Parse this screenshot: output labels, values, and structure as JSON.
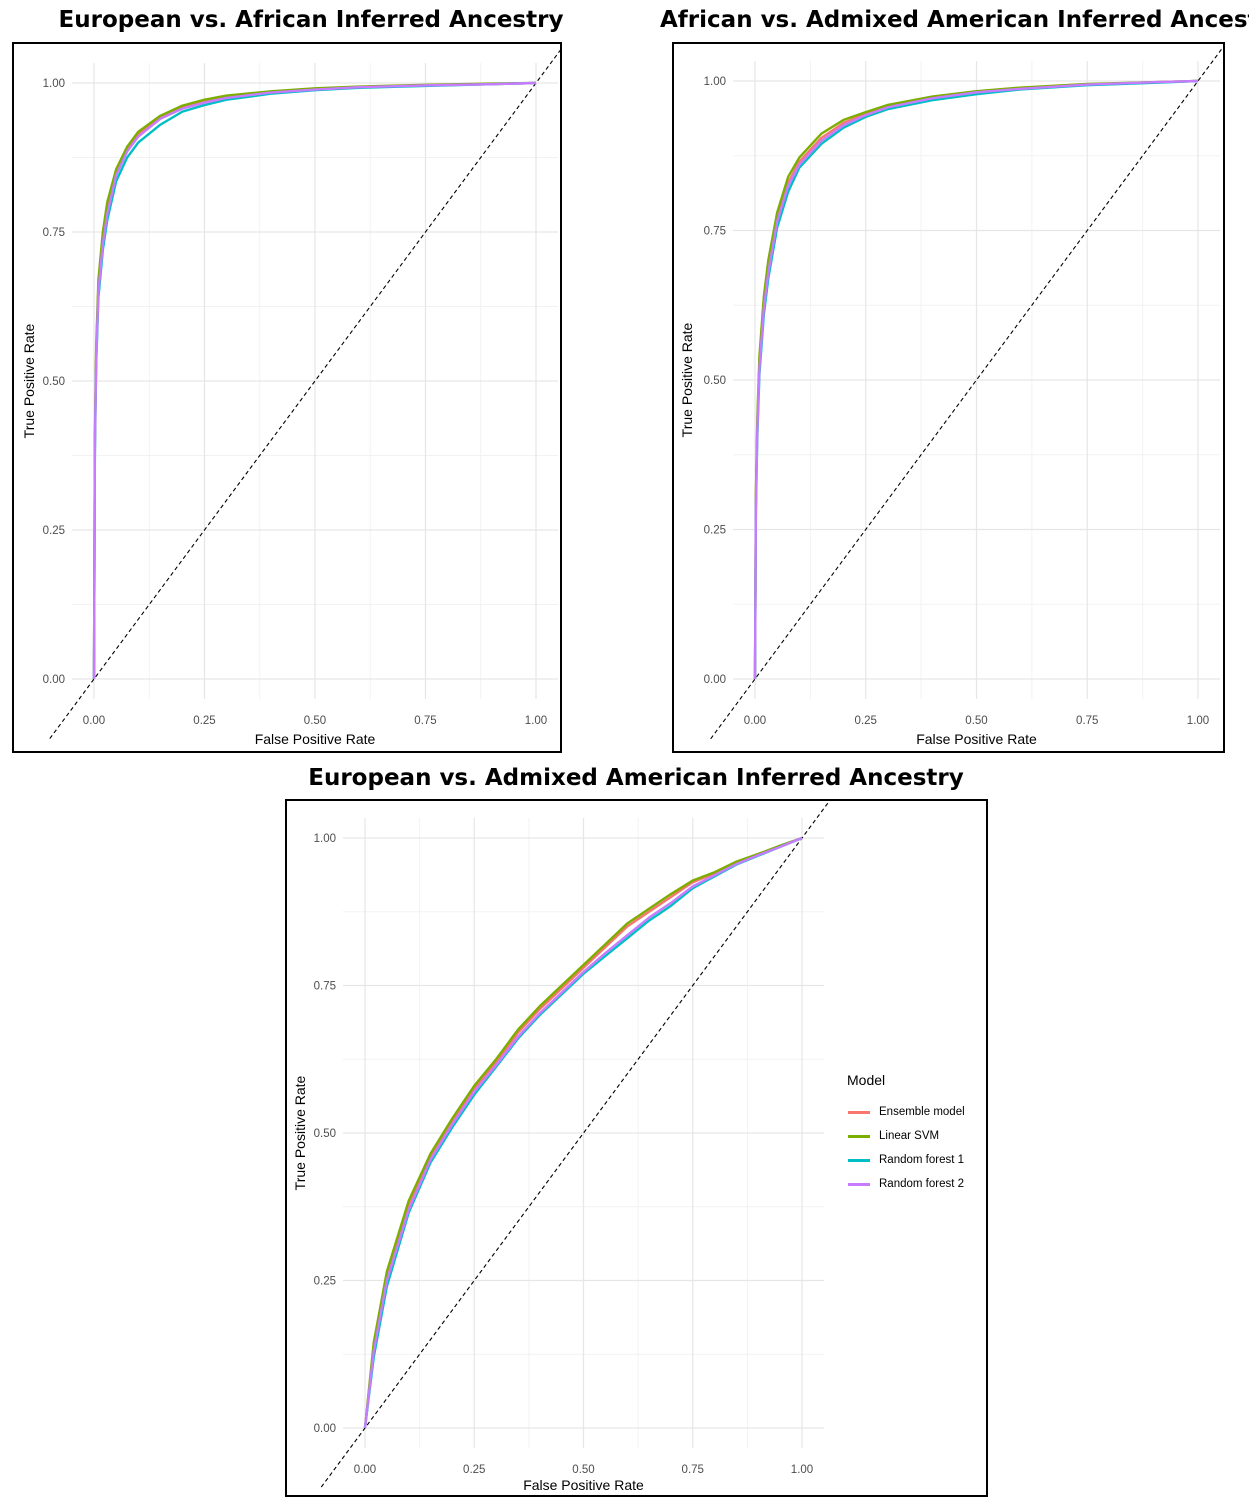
{
  "panels": [
    {
      "title": "European vs. African Inferred Ancestry"
    },
    {
      "title": "African vs. Admixed American Inferred Ancestry"
    },
    {
      "title": "European vs. Admixed American Inferred Ancestry"
    }
  ],
  "legend": {
    "title": "Model",
    "items": [
      {
        "label": "Ensemble model",
        "color": "#F8766D"
      },
      {
        "label": "Linear SVM",
        "color": "#7CAE00"
      },
      {
        "label": "Random forest 1",
        "color": "#00BFC4"
      },
      {
        "label": "Random forest 2",
        "color": "#C77CFF"
      }
    ]
  },
  "chart_data": [
    {
      "type": "line",
      "title": "European vs. African Inferred Ancestry",
      "xlabel": "False Positive Rate",
      "ylabel": "True Positive Rate",
      "xlim": [
        0,
        1
      ],
      "ylim": [
        0,
        1
      ],
      "xticks": [
        "0.00",
        "0.25",
        "0.50",
        "0.75",
        "1.00"
      ],
      "yticks": [
        "0.00",
        "0.25",
        "0.50",
        "0.75",
        "1.00"
      ],
      "grid": true,
      "reference_line": {
        "x": [
          0,
          1
        ],
        "y": [
          0,
          1
        ],
        "style": "dashed"
      },
      "series": [
        {
          "name": "Ensemble model",
          "x": [
            0,
            0.002,
            0.005,
            0.01,
            0.02,
            0.03,
            0.05,
            0.075,
            0.1,
            0.15,
            0.2,
            0.25,
            0.3,
            0.4,
            0.5,
            0.6,
            0.75,
            0.9,
            1.0
          ],
          "y": [
            0,
            0.4,
            0.55,
            0.66,
            0.74,
            0.79,
            0.85,
            0.89,
            0.915,
            0.942,
            0.96,
            0.97,
            0.977,
            0.985,
            0.99,
            0.993,
            0.996,
            0.998,
            1.0
          ]
        },
        {
          "name": "Linear SVM",
          "x": [
            0,
            0.002,
            0.005,
            0.01,
            0.02,
            0.03,
            0.05,
            0.075,
            0.1,
            0.15,
            0.2,
            0.25,
            0.3,
            0.4,
            0.5,
            0.6,
            0.75,
            0.9,
            1.0
          ],
          "y": [
            0,
            0.41,
            0.56,
            0.67,
            0.75,
            0.8,
            0.855,
            0.893,
            0.918,
            0.945,
            0.962,
            0.972,
            0.979,
            0.986,
            0.991,
            0.994,
            0.997,
            0.999,
            1.0
          ]
        },
        {
          "name": "Random forest 1",
          "x": [
            0,
            0.002,
            0.005,
            0.01,
            0.02,
            0.03,
            0.05,
            0.075,
            0.1,
            0.15,
            0.2,
            0.25,
            0.3,
            0.4,
            0.5,
            0.6,
            0.75,
            0.9,
            1.0
          ],
          "y": [
            0,
            0.38,
            0.53,
            0.64,
            0.72,
            0.77,
            0.835,
            0.875,
            0.9,
            0.93,
            0.952,
            0.963,
            0.972,
            0.982,
            0.988,
            0.992,
            0.995,
            0.998,
            1.0
          ]
        },
        {
          "name": "Random forest 2",
          "x": [
            0,
            0.002,
            0.005,
            0.01,
            0.02,
            0.03,
            0.05,
            0.075,
            0.1,
            0.15,
            0.2,
            0.25,
            0.3,
            0.4,
            0.5,
            0.6,
            0.75,
            0.9,
            1.0
          ],
          "y": [
            0,
            0.39,
            0.54,
            0.65,
            0.73,
            0.78,
            0.845,
            0.885,
            0.91,
            0.94,
            0.957,
            0.967,
            0.975,
            0.984,
            0.989,
            0.993,
            0.996,
            0.998,
            1.0
          ]
        }
      ]
    },
    {
      "type": "line",
      "title": "African vs. Admixed American Inferred Ancestry",
      "xlabel": "False Positive Rate",
      "ylabel": "True Positive Rate",
      "xlim": [
        0,
        1
      ],
      "ylim": [
        0,
        1
      ],
      "xticks": [
        "0.00",
        "0.25",
        "0.50",
        "0.75",
        "1.00"
      ],
      "yticks": [
        "0.00",
        "0.25",
        "0.50",
        "0.75",
        "1.00"
      ],
      "grid": true,
      "reference_line": {
        "x": [
          0,
          1
        ],
        "y": [
          0,
          1
        ],
        "style": "dashed"
      },
      "series": [
        {
          "name": "Ensemble model",
          "x": [
            0,
            0.002,
            0.005,
            0.01,
            0.02,
            0.03,
            0.05,
            0.075,
            0.1,
            0.15,
            0.2,
            0.25,
            0.3,
            0.4,
            0.5,
            0.6,
            0.75,
            0.9,
            1.0
          ],
          "y": [
            0,
            0.3,
            0.42,
            0.53,
            0.63,
            0.69,
            0.77,
            0.83,
            0.865,
            0.905,
            0.93,
            0.945,
            0.958,
            0.973,
            0.982,
            0.988,
            0.994,
            0.998,
            1.0
          ]
        },
        {
          "name": "Linear SVM",
          "x": [
            0,
            0.002,
            0.005,
            0.01,
            0.02,
            0.03,
            0.05,
            0.075,
            0.1,
            0.15,
            0.2,
            0.25,
            0.3,
            0.4,
            0.5,
            0.6,
            0.75,
            0.9,
            1.0
          ],
          "y": [
            0,
            0.31,
            0.43,
            0.54,
            0.64,
            0.7,
            0.78,
            0.84,
            0.872,
            0.912,
            0.935,
            0.948,
            0.96,
            0.974,
            0.983,
            0.989,
            0.995,
            0.998,
            1.0
          ]
        },
        {
          "name": "Random forest 1",
          "x": [
            0,
            0.002,
            0.005,
            0.01,
            0.02,
            0.03,
            0.05,
            0.075,
            0.1,
            0.15,
            0.2,
            0.25,
            0.3,
            0.4,
            0.5,
            0.6,
            0.75,
            0.9,
            1.0
          ],
          "y": [
            0,
            0.28,
            0.4,
            0.51,
            0.61,
            0.67,
            0.755,
            0.815,
            0.855,
            0.895,
            0.922,
            0.94,
            0.953,
            0.968,
            0.978,
            0.986,
            0.993,
            0.997,
            1.0
          ]
        },
        {
          "name": "Random forest 2",
          "x": [
            0,
            0.002,
            0.005,
            0.01,
            0.02,
            0.03,
            0.05,
            0.075,
            0.1,
            0.15,
            0.2,
            0.25,
            0.3,
            0.4,
            0.5,
            0.6,
            0.75,
            0.9,
            1.0
          ],
          "y": [
            0,
            0.29,
            0.41,
            0.52,
            0.62,
            0.68,
            0.765,
            0.825,
            0.86,
            0.9,
            0.926,
            0.943,
            0.956,
            0.971,
            0.981,
            0.987,
            0.994,
            0.998,
            1.0
          ]
        }
      ]
    },
    {
      "type": "line",
      "title": "European vs. Admixed American Inferred Ancestry",
      "xlabel": "False Positive Rate",
      "ylabel": "True Positive Rate",
      "xlim": [
        0,
        1
      ],
      "ylim": [
        0,
        1
      ],
      "xticks": [
        "0.00",
        "0.25",
        "0.50",
        "0.75",
        "1.00"
      ],
      "yticks": [
        "0.00",
        "0.25",
        "0.50",
        "0.75",
        "1.00"
      ],
      "grid": true,
      "legend": "right",
      "reference_line": {
        "x": [
          0,
          1
        ],
        "y": [
          0,
          1
        ],
        "style": "dashed"
      },
      "series": [
        {
          "name": "Ensemble model",
          "x": [
            0,
            0.02,
            0.05,
            0.1,
            0.15,
            0.2,
            0.25,
            0.3,
            0.35,
            0.4,
            0.45,
            0.5,
            0.55,
            0.6,
            0.65,
            0.7,
            0.75,
            0.8,
            0.85,
            0.9,
            0.95,
            1.0
          ],
          "y": [
            0,
            0.14,
            0.26,
            0.38,
            0.46,
            0.52,
            0.575,
            0.62,
            0.67,
            0.71,
            0.745,
            0.78,
            0.815,
            0.85,
            0.875,
            0.9,
            0.925,
            0.94,
            0.958,
            0.972,
            0.986,
            1.0
          ]
        },
        {
          "name": "Linear SVM",
          "x": [
            0,
            0.02,
            0.05,
            0.1,
            0.15,
            0.2,
            0.25,
            0.3,
            0.35,
            0.4,
            0.45,
            0.5,
            0.55,
            0.6,
            0.65,
            0.7,
            0.75,
            0.8,
            0.85,
            0.9,
            0.95,
            1.0
          ],
          "y": [
            0,
            0.145,
            0.265,
            0.385,
            0.465,
            0.525,
            0.58,
            0.625,
            0.675,
            0.715,
            0.75,
            0.785,
            0.82,
            0.855,
            0.88,
            0.905,
            0.928,
            0.942,
            0.96,
            0.973,
            0.987,
            1.0
          ]
        },
        {
          "name": "Random forest 1",
          "x": [
            0,
            0.02,
            0.05,
            0.1,
            0.15,
            0.2,
            0.25,
            0.3,
            0.35,
            0.4,
            0.45,
            0.5,
            0.55,
            0.6,
            0.65,
            0.7,
            0.75,
            0.8,
            0.85,
            0.9,
            0.95,
            1.0
          ],
          "y": [
            0,
            0.12,
            0.24,
            0.365,
            0.45,
            0.51,
            0.565,
            0.612,
            0.66,
            0.7,
            0.735,
            0.77,
            0.8,
            0.83,
            0.86,
            0.885,
            0.915,
            0.935,
            0.955,
            0.97,
            0.985,
            1.0
          ]
        },
        {
          "name": "Random forest 2",
          "x": [
            0,
            0.02,
            0.05,
            0.1,
            0.15,
            0.2,
            0.25,
            0.3,
            0.35,
            0.4,
            0.45,
            0.5,
            0.55,
            0.6,
            0.65,
            0.7,
            0.75,
            0.8,
            0.85,
            0.9,
            0.95,
            1.0
          ],
          "y": [
            0,
            0.13,
            0.25,
            0.37,
            0.455,
            0.515,
            0.57,
            0.615,
            0.663,
            0.703,
            0.738,
            0.773,
            0.805,
            0.835,
            0.865,
            0.89,
            0.918,
            0.937,
            0.956,
            0.971,
            0.985,
            1.0
          ]
        }
      ]
    }
  ]
}
